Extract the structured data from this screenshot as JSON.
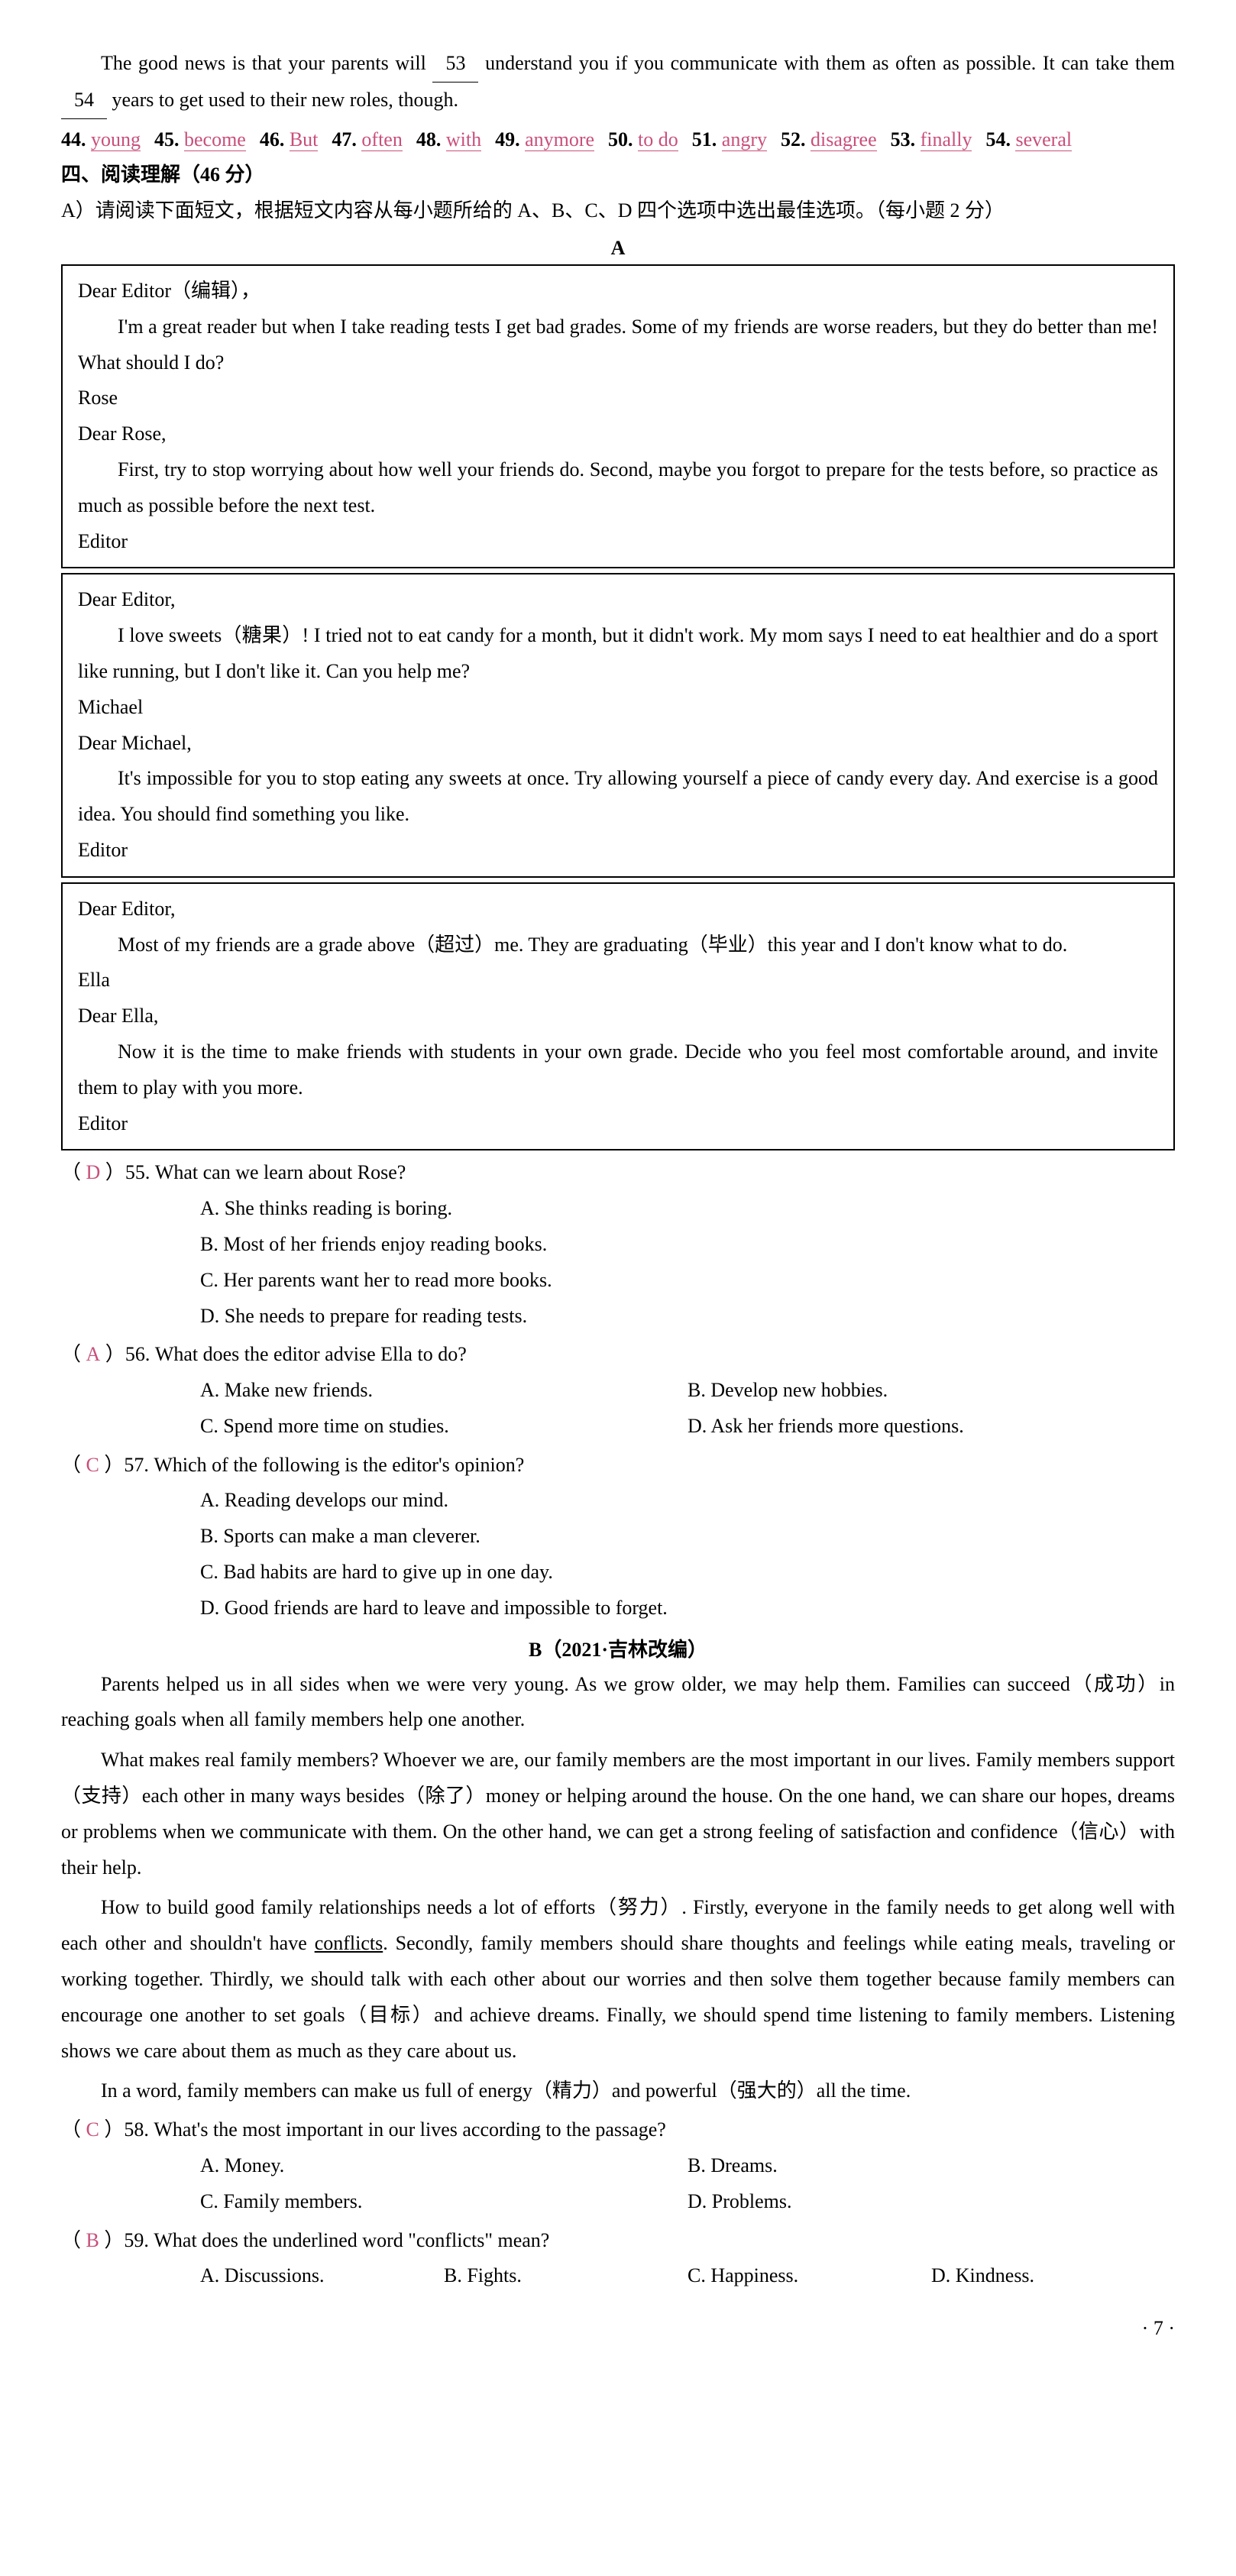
{
  "intro": {
    "p1_a": "The good news is that your parents will",
    "blank1": "53",
    "p1_b": "understand you if you communicate with them as often as possible. It can take them",
    "blank2": "54",
    "p1_c": "years to get used to their new roles, though."
  },
  "answers": [
    {
      "num": "44.",
      "word": "young"
    },
    {
      "num": "45.",
      "word": "become"
    },
    {
      "num": "46.",
      "word": "But"
    },
    {
      "num": "47.",
      "word": "often"
    },
    {
      "num": "48.",
      "word": "with"
    },
    {
      "num": "49.",
      "word": "anymore"
    },
    {
      "num": "50.",
      "word": "to do"
    },
    {
      "num": "51.",
      "word": "angry"
    },
    {
      "num": "52.",
      "word": "disagree"
    },
    {
      "num": "53.",
      "word": "finally"
    },
    {
      "num": "54.",
      "word": "several"
    }
  ],
  "section4": {
    "title": "四、阅读理解（46 分）",
    "intro": "A）请阅读下面短文，根据短文内容从每小题所给的 A、B、C、D 四个选项中选出最佳选项。（每小题 2 分）",
    "labelA": "A"
  },
  "letters": [
    {
      "greet1": "Dear Editor（编辑），",
      "body1": "I'm a great reader but when I take reading tests I get bad grades. Some of my friends are worse readers, but they do better than me! What should I do?",
      "sig1": "Rose",
      "greet2": "Dear Rose,",
      "body2": "First, try to stop worrying about how well your friends do. Second, maybe you forgot to prepare for the tests before, so practice as much as possible before the next test.",
      "sig2": "Editor"
    },
    {
      "greet1": "Dear Editor,",
      "body1": "I love sweets（糖果）! I tried not to eat candy for a month, but it didn't work. My mom says I need to eat healthier and do a sport like running, but I don't like it. Can you help me?",
      "sig1": "Michael",
      "greet2": "Dear Michael,",
      "body2": "It's impossible for you to stop eating any sweets at once. Try allowing yourself a piece of candy every day. And exercise is a good idea. You should find something you like.",
      "sig2": "Editor"
    },
    {
      "greet1": "Dear Editor,",
      "body1": "Most of my friends are a grade above（超过）me. They are graduating（毕业）this year and I don't know what to do.",
      "sig1": "Ella",
      "greet2": "Dear Ella,",
      "body2": "Now it is the time to make friends with students in your own grade. Decide who you feel most comfortable around, and invite them to play with you more.",
      "sig2": "Editor"
    }
  ],
  "questions55_57": [
    {
      "ans": "D",
      "num": "55.",
      "q": "What can we learn about Rose?",
      "opts": [
        "A. She thinks reading is boring.",
        "B. Most of her friends enjoy reading books.",
        "C. Her parents want her to read more books.",
        "D. She needs to prepare for reading tests."
      ],
      "layout": "single"
    },
    {
      "ans": "A",
      "num": "56.",
      "q": "What does the editor advise Ella to do?",
      "opts": [
        "A. Make new friends.",
        "B. Develop new hobbies.",
        "C. Spend more time on studies.",
        "D. Ask her friends more questions."
      ],
      "layout": "double"
    },
    {
      "ans": "C",
      "num": "57.",
      "q": "Which of the following is the editor's opinion?",
      "opts": [
        "A. Reading develops our mind.",
        "B. Sports can make a man cleverer.",
        "C. Bad habits are hard to give up in one day.",
        "D. Good friends are hard to leave and impossible to forget."
      ],
      "layout": "single"
    }
  ],
  "passageB": {
    "label": "B（2021·吉林改编）",
    "p1": "Parents helped us in all sides when we were very young. As we grow older, we may help them. Families can succeed（成功）in reaching goals when all family members help one another.",
    "p2": "What makes real family members? Whoever we are, our family members are the most important in our lives. Family members support（支持）each other in many ways besides（除了）money or helping around the house. On the one hand, we can share our hopes, dreams or problems when we communicate with them. On the other hand, we can get a strong feeling of satisfaction and confidence（信心）with their help.",
    "p3a": "How to build good family relationships needs a lot of efforts（努力）. Firstly, everyone in the family needs to get along well with each other and shouldn't have ",
    "p3u": "conflicts",
    "p3b": ". Secondly, family members should share thoughts and feelings while eating meals, traveling or working together. Thirdly, we should talk with each other about our worries and then solve them together because family members can encourage one another to set goals（目标）and achieve dreams. Finally, we should spend time listening to family members. Listening shows we care about them as much as they care about us.",
    "p4": "In a word, family members can make us full of energy（精力）and powerful（强大的）all the time."
  },
  "questions58_59": [
    {
      "ans": "C",
      "num": "58.",
      "q": "What's the most important in our lives according to the passage?",
      "opts": [
        "A. Money.",
        "B. Dreams.",
        "C. Family members.",
        "D. Problems."
      ],
      "layout": "double"
    },
    {
      "ans": "B",
      "num": "59.",
      "q": "What does the underlined word \"conflicts\" mean?",
      "opts": [
        "A. Discussions.",
        "B. Fights.",
        "C. Happiness.",
        "D. Kindness."
      ],
      "layout": "quad"
    }
  ],
  "pageNum": "· 7 ·"
}
